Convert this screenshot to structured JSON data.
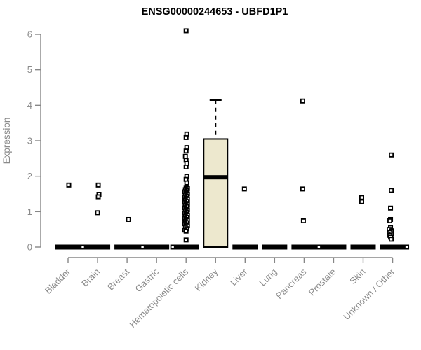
{
  "title": "ENSG00000244653 - UBFD1P1",
  "chart_data": {
    "type": "boxplot",
    "title": "ENSG00000244653 - UBFD1P1",
    "ylabel": "Expression",
    "ylim": [
      0,
      6
    ],
    "yticks": [
      0,
      1,
      2,
      3,
      4,
      5,
      6
    ],
    "grid": false,
    "categories": [
      "Bladder",
      "Brain",
      "Breast",
      "Gastric",
      "Hematopoietic cells",
      "Kidney",
      "Liver",
      "Lung",
      "Pancreas",
      "Prostate",
      "Skin",
      "Unknown / Other"
    ],
    "boxes": [
      {
        "min": 0,
        "q1": 0,
        "median": 0,
        "q3": 0,
        "max": 0
      },
      {
        "min": 0,
        "q1": 0,
        "median": 0,
        "q3": 0,
        "max": 0
      },
      {
        "min": 0,
        "q1": 0,
        "median": 0,
        "q3": 0,
        "max": 0
      },
      {
        "min": 0,
        "q1": 0,
        "median": 0,
        "q3": 0,
        "max": 0
      },
      {
        "min": 0,
        "q1": 0,
        "median": 0,
        "q3": 0,
        "max": 0
      },
      {
        "min": 0,
        "q1": 0,
        "median": 1.97,
        "q3": 3.05,
        "max": 4.15
      },
      {
        "min": 0,
        "q1": 0,
        "median": 0,
        "q3": 0,
        "max": 0
      },
      {
        "min": 0,
        "q1": 0,
        "median": 0,
        "q3": 0,
        "max": 0
      },
      {
        "min": 0,
        "q1": 0,
        "median": 0,
        "q3": 0,
        "max": 0
      },
      {
        "min": 0,
        "q1": 0,
        "median": 0,
        "q3": 0,
        "max": 0
      },
      {
        "min": 0,
        "q1": 0,
        "median": 0,
        "q3": 0,
        "max": 0
      },
      {
        "min": 0,
        "q1": 0,
        "median": 0,
        "q3": 0,
        "max": 0
      }
    ],
    "outliers": [
      [
        [
          1.75,
          1
        ],
        [
          0,
          21
        ]
      ],
      [
        [
          1.75,
          1
        ],
        [
          1.49,
          2
        ],
        [
          1.42,
          1
        ],
        [
          0.97,
          0
        ]
      ],
      [
        [
          0.78,
          2
        ],
        [
          0,
          22
        ]
      ],
      [
        [
          0,
          23
        ]
      ],
      [
        [
          6.1,
          0
        ],
        [
          3.19,
          1
        ],
        [
          3.09,
          0
        ],
        [
          2.81,
          1
        ],
        [
          2.71,
          0
        ],
        [
          2.56,
          -1
        ],
        [
          2.45,
          0
        ],
        [
          2.36,
          1
        ],
        [
          2.26,
          0
        ],
        [
          2.0,
          1
        ],
        [
          1.91,
          0
        ],
        [
          1.81,
          1
        ],
        [
          1.68,
          0
        ],
        [
          1.65,
          2
        ],
        [
          1.62,
          -1
        ],
        [
          1.59,
          1
        ],
        [
          1.56,
          -2
        ],
        [
          1.53,
          0
        ],
        [
          1.5,
          2
        ],
        [
          1.47,
          -1
        ],
        [
          1.44,
          1
        ],
        [
          1.41,
          -2
        ],
        [
          1.38,
          0
        ],
        [
          1.35,
          2
        ],
        [
          1.32,
          -1
        ],
        [
          1.29,
          1
        ],
        [
          1.26,
          -2
        ],
        [
          1.23,
          0
        ],
        [
          1.2,
          2
        ],
        [
          1.17,
          -1
        ],
        [
          1.14,
          1
        ],
        [
          1.11,
          -2
        ],
        [
          1.08,
          0
        ],
        [
          1.05,
          2
        ],
        [
          1.02,
          -1
        ],
        [
          0.99,
          1
        ],
        [
          0.96,
          -2
        ],
        [
          0.93,
          0
        ],
        [
          0.9,
          2
        ],
        [
          0.87,
          -1
        ],
        [
          0.84,
          1
        ],
        [
          0.81,
          -2
        ],
        [
          0.78,
          0
        ],
        [
          0.75,
          2
        ],
        [
          0.72,
          -1
        ],
        [
          0.69,
          1
        ],
        [
          0.66,
          -2
        ],
        [
          0.63,
          0
        ],
        [
          0.6,
          2
        ],
        [
          0.56,
          -1
        ],
        [
          0.52,
          1
        ],
        [
          0.48,
          -2
        ],
        [
          0.45,
          0
        ],
        [
          0.2,
          0
        ]
      ],
      [],
      [
        [
          1.64,
          -1
        ]
      ],
      [],
      [
        [
          4.12,
          -2
        ],
        [
          1.64,
          -2
        ],
        [
          0.74,
          -1
        ],
        [
          0,
          21
        ]
      ],
      [],
      [
        [
          1.4,
          -2
        ],
        [
          1.28,
          -2
        ]
      ],
      [
        [
          2.6,
          -2
        ],
        [
          1.6,
          -2
        ],
        [
          1.1,
          -3
        ],
        [
          0.78,
          -3
        ],
        [
          0.74,
          -4
        ],
        [
          0.55,
          -3
        ],
        [
          0.5,
          -5
        ],
        [
          0.46,
          -2
        ],
        [
          0.42,
          -4
        ],
        [
          0.37,
          -2
        ],
        [
          0.33,
          -4
        ],
        [
          0.28,
          -3
        ],
        [
          0.22,
          -2
        ],
        [
          0,
          20
        ]
      ]
    ],
    "colors": {
      "box_fill": "#EDE8CE",
      "box_stroke": "#000000",
      "median": "#000000",
      "zero_bar": "#000000",
      "axis": "#878787",
      "tick_label": "#8a8a8a",
      "title": "#000000",
      "marker_stroke": "#000000",
      "marker_fill": "#ffffff"
    },
    "legend": null
  }
}
